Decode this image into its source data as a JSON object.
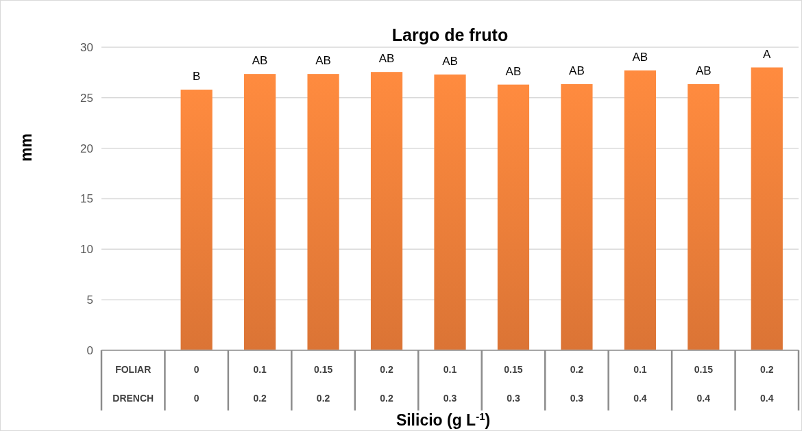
{
  "chart_data": {
    "type": "bar",
    "title": "Largo de fruto",
    "xlabel": "Silicio (g L$^{-1}$)",
    "ylabel": "mm",
    "categories": [
      "FOLIAR\nDRENCH",
      "0\n0",
      "0.1\n0.2",
      "0.15\n0.2",
      "0.2\n0.2",
      "0.1\n0.3",
      "0.15\n0.3",
      "0.2\n0.3",
      "0.1\n0.4",
      "0.15\n0.4",
      "0.2\n0.4"
    ],
    "values": [
      null,
      25.8,
      27.35,
      27.35,
      27.55,
      27.3,
      26.3,
      26.35,
      27.7,
      26.35,
      28.0
    ],
    "value_labels": [
      null,
      "B",
      "AB",
      "AB",
      "AB",
      "AB",
      "AB",
      "AB",
      "AB",
      "AB",
      "A"
    ],
    "color": "#ef7f3a",
    "ylim": [
      0,
      30
    ],
    "yticks": [
      0,
      5,
      10,
      15,
      20,
      25,
      30
    ],
    "grid": "y"
  }
}
